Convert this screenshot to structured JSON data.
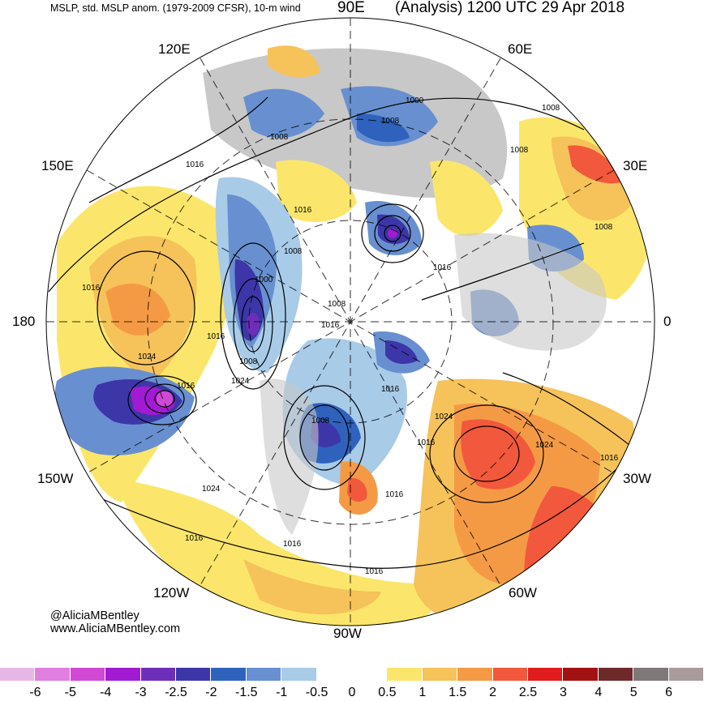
{
  "header": {
    "left": "MSLP, std. MSLP anom. (1979-2009 CFSR), 10-m wind",
    "right": "(Analysis) 1200 UTC 29 Apr 2018"
  },
  "longitude_labels": {
    "lon_90e": "90E",
    "lon_60e": "60E",
    "lon_120e": "120E",
    "lon_150e": "150E",
    "lon_30e": "30E",
    "lon_180": "180",
    "lon_0": "0",
    "lon_150w": "150W",
    "lon_30w": "30W",
    "lon_120w": "120W",
    "lon_60w": "60W",
    "lon_90w": "90W"
  },
  "credit": {
    "handle": "@AliciaMBentley",
    "url": "www.AliciaMBentley.com"
  },
  "isobar_labels": [
    "1000",
    "1008",
    "1008",
    "1008",
    "1016",
    "1008",
    "1016",
    "1008",
    "1016",
    "1000",
    "1008",
    "1016",
    "1016",
    "1024",
    "1008",
    "1024",
    "1016",
    "1016",
    "1008",
    "1008",
    "1024",
    "1016",
    "1024",
    "1016",
    "1024",
    "1016",
    "1016",
    "1016",
    "1016",
    "1016"
  ],
  "colorbar": {
    "ticks": [
      "-6",
      "-5",
      "-4",
      "-3",
      "-2.5",
      "-2",
      "-1.5",
      "-1",
      "-0.5",
      "0",
      "0.5",
      "1",
      "1.5",
      "2",
      "2.5",
      "3",
      "4",
      "5",
      "6"
    ],
    "colors": [
      "#e7b6e6",
      "#e07fe0",
      "#d148d4",
      "#a21ad2",
      "#6f2eb8",
      "#3d36a8",
      "#2f62bd",
      "#6890d0",
      "#a8cbe8",
      "#ffffff",
      "#ffffff",
      "#fbe66b",
      "#f6c25a",
      "#f49a45",
      "#f2583b",
      "#e01c1c",
      "#a31212",
      "#6e2a2a",
      "#7f7878",
      "#a99b9b"
    ]
  }
}
